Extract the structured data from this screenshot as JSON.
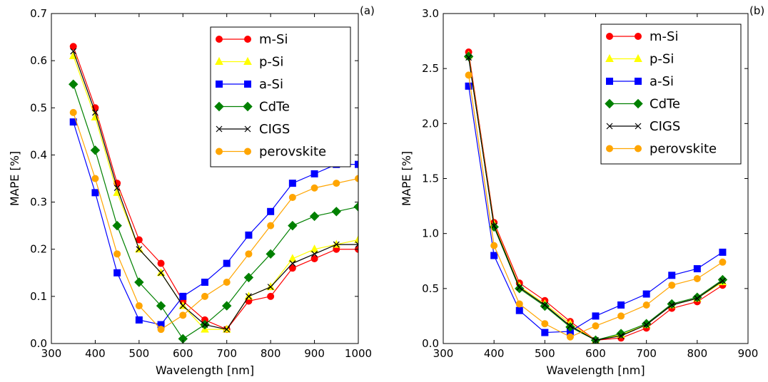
{
  "chart_data": [
    {
      "type": "line",
      "panel_label": "(a)",
      "xlabel": "Wavelength [nm]",
      "ylabel": "MAPE [%]",
      "xlim": [
        300,
        1000
      ],
      "ylim": [
        0,
        0.7
      ],
      "xticks": [
        300,
        400,
        500,
        600,
        700,
        800,
        900,
        1000
      ],
      "yticks": [
        0.0,
        0.1,
        0.2,
        0.3,
        0.4,
        0.5,
        0.6,
        0.7
      ],
      "xtick_labels": [
        "300",
        "400",
        "500",
        "600",
        "700",
        "800",
        "900",
        "1000"
      ],
      "ytick_labels": [
        "0.0",
        "0.1",
        "0.2",
        "0.3",
        "0.4",
        "0.5",
        "0.6",
        "0.7"
      ],
      "legend_position": "top-right",
      "grid": false,
      "x": [
        350,
        400,
        450,
        500,
        550,
        600,
        650,
        700,
        750,
        800,
        850,
        900,
        950,
        1000
      ],
      "series": [
        {
          "name": "m-Si",
          "color": "#ff0000",
          "marker": "circle",
          "values": [
            0.63,
            0.5,
            0.34,
            0.22,
            0.17,
            0.09,
            0.05,
            0.03,
            0.09,
            0.1,
            0.16,
            0.18,
            0.2,
            0.2
          ]
        },
        {
          "name": "p-Si",
          "color": "#ffff00",
          "marker": "triangle",
          "values": [
            0.61,
            0.48,
            0.32,
            0.2,
            0.15,
            0.08,
            0.03,
            0.03,
            0.1,
            0.12,
            0.18,
            0.2,
            0.21,
            0.22
          ]
        },
        {
          "name": "a-Si",
          "color": "#0000ff",
          "marker": "square",
          "values": [
            0.47,
            0.32,
            0.15,
            0.05,
            0.04,
            0.1,
            0.13,
            0.17,
            0.23,
            0.28,
            0.34,
            0.36,
            0.38,
            0.38
          ]
        },
        {
          "name": "CdTe",
          "color": "#008000",
          "marker": "diamond",
          "values": [
            0.55,
            0.41,
            0.25,
            0.13,
            0.08,
            0.01,
            0.04,
            0.08,
            0.14,
            0.19,
            0.25,
            0.27,
            0.28,
            0.29
          ]
        },
        {
          "name": "CIGS",
          "color": "#000000",
          "marker": "x",
          "values": [
            0.62,
            0.49,
            0.33,
            0.2,
            0.15,
            0.08,
            0.04,
            0.03,
            0.1,
            0.12,
            0.17,
            0.19,
            0.21,
            0.21
          ]
        },
        {
          "name": "perovskite",
          "color": "#ffa500",
          "marker": "circle",
          "values": [
            0.49,
            0.35,
            0.19,
            0.08,
            0.03,
            0.06,
            0.1,
            0.13,
            0.19,
            0.25,
            0.31,
            0.33,
            0.34,
            0.35
          ]
        }
      ]
    },
    {
      "type": "line",
      "panel_label": "(b)",
      "xlabel": "Wavelength [nm]",
      "ylabel": "MAPE [%]",
      "xlim": [
        300,
        900
      ],
      "ylim": [
        0,
        3.0
      ],
      "xticks": [
        300,
        400,
        500,
        600,
        700,
        800,
        900
      ],
      "yticks": [
        0.0,
        0.5,
        1.0,
        1.5,
        2.0,
        2.5,
        3.0
      ],
      "xtick_labels": [
        "300",
        "400",
        "500",
        "600",
        "700",
        "800",
        "900"
      ],
      "ytick_labels": [
        "0.0",
        "0.5",
        "1.0",
        "1.5",
        "2.0",
        "2.5",
        "3.0"
      ],
      "legend_position": "top-right",
      "grid": false,
      "x": [
        350,
        400,
        450,
        500,
        550,
        600,
        650,
        700,
        750,
        800,
        850
      ],
      "series": [
        {
          "name": "m-Si",
          "color": "#ff0000",
          "marker": "circle",
          "values": [
            2.65,
            1.1,
            0.55,
            0.39,
            0.2,
            0.03,
            0.05,
            0.14,
            0.32,
            0.38,
            0.53
          ]
        },
        {
          "name": "p-Si",
          "color": "#ffff00",
          "marker": "triangle",
          "values": [
            2.62,
            1.08,
            0.52,
            0.36,
            0.18,
            0.03,
            0.08,
            0.17,
            0.35,
            0.41,
            0.56
          ]
        },
        {
          "name": "a-Si",
          "color": "#0000ff",
          "marker": "square",
          "values": [
            2.34,
            0.8,
            0.3,
            0.1,
            0.11,
            0.25,
            0.35,
            0.45,
            0.62,
            0.68,
            0.83
          ]
        },
        {
          "name": "CdTe",
          "color": "#008000",
          "marker": "diamond",
          "values": [
            2.61,
            1.06,
            0.5,
            0.34,
            0.15,
            0.03,
            0.09,
            0.18,
            0.36,
            0.42,
            0.58
          ]
        },
        {
          "name": "CIGS",
          "color": "#000000",
          "marker": "x",
          "values": [
            2.6,
            1.07,
            0.51,
            0.35,
            0.16,
            0.03,
            0.07,
            0.17,
            0.35,
            0.41,
            0.57
          ]
        },
        {
          "name": "perovskite",
          "color": "#ffa500",
          "marker": "circle",
          "values": [
            2.44,
            0.89,
            0.36,
            0.18,
            0.06,
            0.16,
            0.25,
            0.35,
            0.53,
            0.59,
            0.74
          ]
        }
      ]
    }
  ]
}
